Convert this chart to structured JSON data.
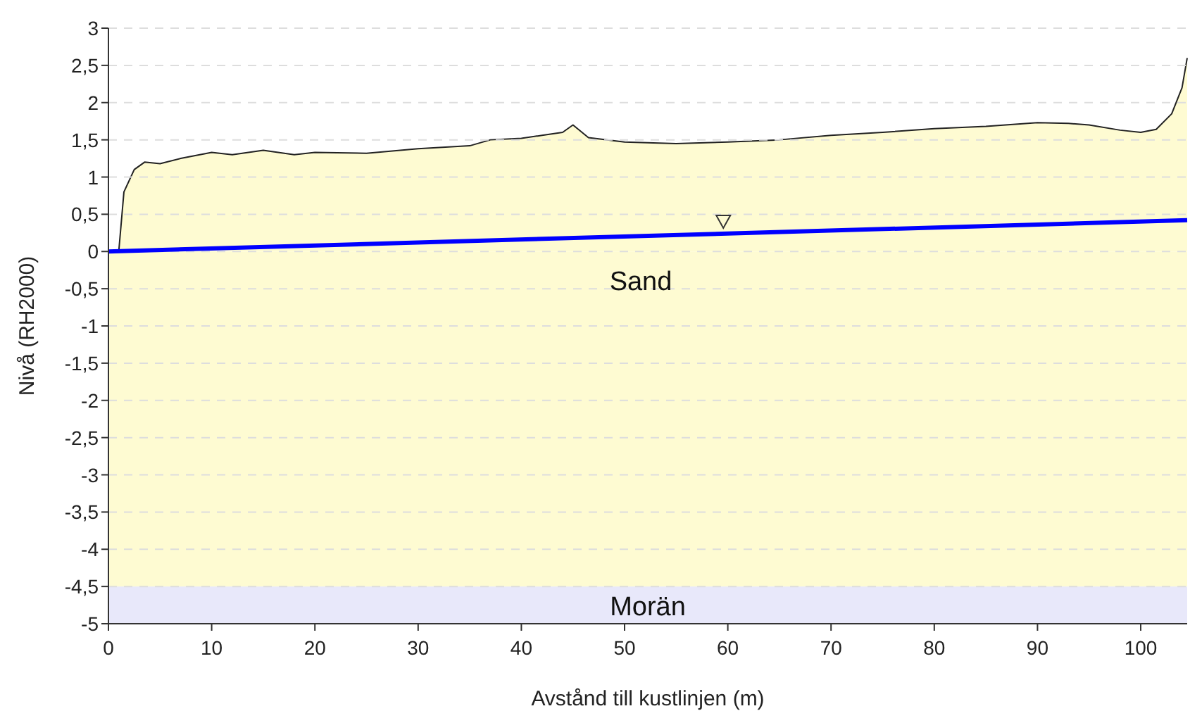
{
  "chart_data": {
    "type": "area",
    "xlabel": "Avstånd till kustlinjen (m)",
    "ylabel": "Nivå (RH2000)",
    "xlim": [
      0,
      104.5
    ],
    "xticks": [
      0,
      10,
      20,
      30,
      40,
      50,
      60,
      70,
      80,
      90,
      100
    ],
    "ylim": [
      -5,
      3
    ],
    "yticks": [
      -5,
      {
        "value": -4.5,
        "label": "-4,5"
      },
      -4,
      {
        "value": -3.5,
        "label": "-3,5"
      },
      -3,
      {
        "value": -2.5,
        "label": "-2,5"
      },
      -2,
      {
        "value": -1.5,
        "label": "-1,5"
      },
      -1,
      {
        "value": -0.5,
        "label": "-0,5"
      },
      0,
      {
        "value": 0.5,
        "label": "0,5"
      },
      1,
      {
        "value": 1.5,
        "label": "1,5"
      },
      2,
      {
        "value": 2.5,
        "label": "2,5"
      },
      3
    ],
    "grid": "y",
    "legend": false,
    "series": [
      {
        "name": "Sand",
        "type": "area",
        "color": "#fefbd2",
        "x": [
          1,
          1.5,
          2.5,
          3.5,
          5,
          7,
          10,
          12,
          15,
          18,
          20,
          25,
          30,
          35,
          37,
          40,
          42,
          44,
          45,
          46.5,
          50,
          55,
          60,
          65,
          70,
          75,
          80,
          85,
          90,
          93,
          95,
          98,
          100,
          101.5,
          103,
          104,
          104.5
        ],
        "values": [
          0,
          0.8,
          1.1,
          1.2,
          1.18,
          1.25,
          1.33,
          1.3,
          1.36,
          1.3,
          1.33,
          1.32,
          1.38,
          1.42,
          1.5,
          1.52,
          1.56,
          1.6,
          1.7,
          1.53,
          1.47,
          1.45,
          1.47,
          1.5,
          1.56,
          1.6,
          1.65,
          1.68,
          1.73,
          1.72,
          1.7,
          1.63,
          1.6,
          1.64,
          1.85,
          2.2,
          2.6
        ]
      },
      {
        "type": "line",
        "color": "#0000ff",
        "x": [
          0,
          104.5
        ],
        "values": [
          0,
          0.42
        ]
      }
    ],
    "bands": [
      {
        "axis": "y",
        "from": -5,
        "to": -4.5,
        "label": "Morän",
        "color": "#e8e8fa"
      },
      {
        "axis": "y",
        "from": -4.5,
        "to": 0,
        "color": "#fefbd2"
      }
    ]
  }
}
